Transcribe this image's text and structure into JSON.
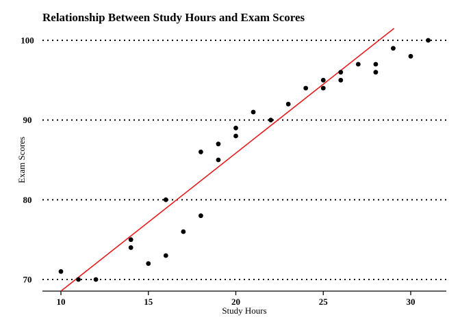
{
  "chart_data": {
    "type": "scatter",
    "title": "Relationship Between Study Hours and Exam Scores",
    "xlabel": "Study Hours",
    "ylabel": "Exam Scores",
    "xlim": [
      9,
      31.5
    ],
    "ylim": [
      68.5,
      101.5
    ],
    "xticks": [
      10,
      15,
      20,
      25,
      30
    ],
    "yticks": [
      70,
      80,
      90,
      100
    ],
    "grid": "horizontal dotted at y ticks",
    "points": [
      {
        "x": 10,
        "y": 71
      },
      {
        "x": 11,
        "y": 70
      },
      {
        "x": 12,
        "y": 70
      },
      {
        "x": 14,
        "y": 75
      },
      {
        "x": 14,
        "y": 74
      },
      {
        "x": 15,
        "y": 72
      },
      {
        "x": 16,
        "y": 80
      },
      {
        "x": 16,
        "y": 73
      },
      {
        "x": 17,
        "y": 76
      },
      {
        "x": 18,
        "y": 86
      },
      {
        "x": 18,
        "y": 78
      },
      {
        "x": 19,
        "y": 87
      },
      {
        "x": 19,
        "y": 85
      },
      {
        "x": 20,
        "y": 89
      },
      {
        "x": 20,
        "y": 88
      },
      {
        "x": 21,
        "y": 91
      },
      {
        "x": 22,
        "y": 90
      },
      {
        "x": 23,
        "y": 92
      },
      {
        "x": 24,
        "y": 94
      },
      {
        "x": 25,
        "y": 95
      },
      {
        "x": 25,
        "y": 94
      },
      {
        "x": 26,
        "y": 96
      },
      {
        "x": 26,
        "y": 95
      },
      {
        "x": 27,
        "y": 97
      },
      {
        "x": 28,
        "y": 97
      },
      {
        "x": 28,
        "y": 96
      },
      {
        "x": 29,
        "y": 99
      },
      {
        "x": 30,
        "y": 98
      },
      {
        "x": 31,
        "y": 100
      }
    ],
    "fit_line": {
      "x1": 10,
      "y1": 68.3,
      "x2": 29.05,
      "y2": 101.5
    },
    "point_color": "#000000",
    "line_color": "#e41a1c"
  }
}
